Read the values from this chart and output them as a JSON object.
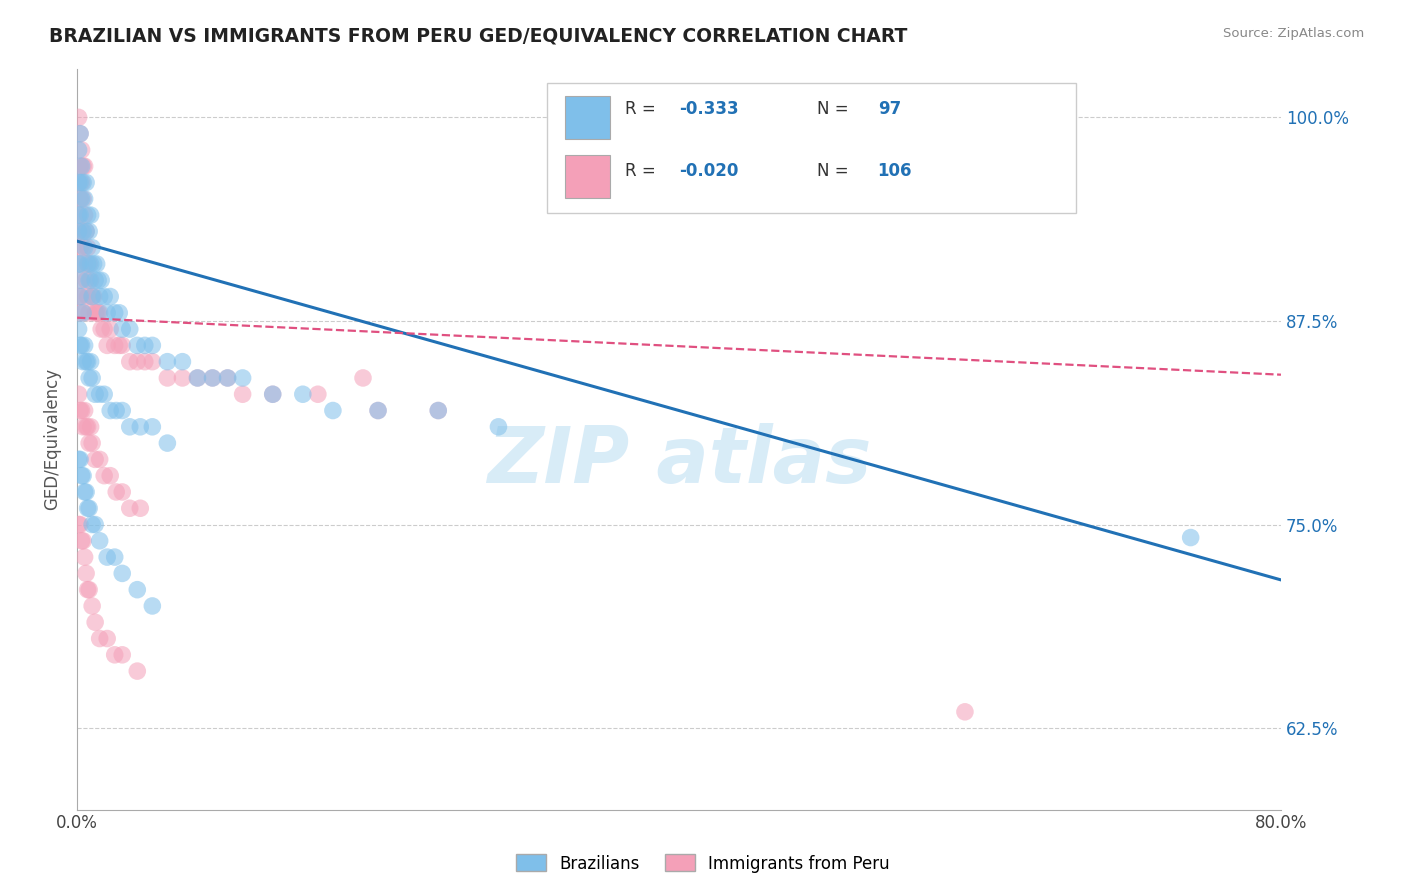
{
  "title": "BRAZILIAN VS IMMIGRANTS FROM PERU GED/EQUIVALENCY CORRELATION CHART",
  "source": "Source: ZipAtlas.com",
  "ylabel": "GED/Equivalency",
  "xlim": [
    0.0,
    0.8
  ],
  "ylim": [
    0.575,
    1.03
  ],
  "ytick_vals": [
    0.625,
    0.75,
    0.875,
    1.0
  ],
  "ytick_labels": [
    "62.5%",
    "75.0%",
    "87.5%",
    "100.0%"
  ],
  "color_blue": "#7fbfea",
  "color_pink": "#f4a0b8",
  "color_blue_line": "#2171b5",
  "color_pink_line": "#e05080",
  "blue_line_x": [
    0.0,
    0.8
  ],
  "blue_line_y": [
    0.924,
    0.716
  ],
  "pink_line_x": [
    0.0,
    0.8
  ],
  "pink_line_y": [
    0.877,
    0.842
  ],
  "blue_scatter_x": [
    0.001,
    0.001,
    0.001,
    0.001,
    0.001,
    0.002,
    0.002,
    0.002,
    0.002,
    0.002,
    0.003,
    0.003,
    0.003,
    0.004,
    0.004,
    0.004,
    0.005,
    0.005,
    0.006,
    0.006,
    0.007,
    0.007,
    0.008,
    0.008,
    0.009,
    0.009,
    0.01,
    0.01,
    0.011,
    0.012,
    0.013,
    0.014,
    0.015,
    0.016,
    0.018,
    0.02,
    0.022,
    0.025,
    0.028,
    0.03,
    0.035,
    0.04,
    0.045,
    0.05,
    0.06,
    0.07,
    0.08,
    0.09,
    0.1,
    0.11,
    0.13,
    0.15,
    0.17,
    0.2,
    0.24,
    0.28,
    0.001,
    0.002,
    0.003,
    0.004,
    0.005,
    0.006,
    0.007,
    0.008,
    0.009,
    0.01,
    0.012,
    0.015,
    0.018,
    0.022,
    0.026,
    0.03,
    0.035,
    0.042,
    0.05,
    0.06,
    0.001,
    0.002,
    0.003,
    0.004,
    0.005,
    0.006,
    0.007,
    0.008,
    0.01,
    0.012,
    0.015,
    0.02,
    0.025,
    0.03,
    0.04,
    0.05,
    0.74
  ],
  "blue_scatter_y": [
    0.96,
    0.94,
    0.98,
    0.93,
    0.91,
    0.99,
    0.96,
    0.94,
    0.91,
    0.89,
    0.97,
    0.95,
    0.9,
    0.96,
    0.93,
    0.88,
    0.95,
    0.92,
    0.96,
    0.93,
    0.94,
    0.91,
    0.93,
    0.9,
    0.94,
    0.91,
    0.92,
    0.89,
    0.91,
    0.9,
    0.91,
    0.9,
    0.89,
    0.9,
    0.89,
    0.88,
    0.89,
    0.88,
    0.88,
    0.87,
    0.87,
    0.86,
    0.86,
    0.86,
    0.85,
    0.85,
    0.84,
    0.84,
    0.84,
    0.84,
    0.83,
    0.83,
    0.82,
    0.82,
    0.82,
    0.81,
    0.87,
    0.86,
    0.86,
    0.85,
    0.86,
    0.85,
    0.85,
    0.84,
    0.85,
    0.84,
    0.83,
    0.83,
    0.83,
    0.82,
    0.82,
    0.82,
    0.81,
    0.81,
    0.81,
    0.8,
    0.79,
    0.79,
    0.78,
    0.78,
    0.77,
    0.77,
    0.76,
    0.76,
    0.75,
    0.75,
    0.74,
    0.73,
    0.73,
    0.72,
    0.71,
    0.7,
    0.742
  ],
  "pink_scatter_x": [
    0.001,
    0.001,
    0.001,
    0.001,
    0.001,
    0.002,
    0.002,
    0.002,
    0.002,
    0.002,
    0.003,
    0.003,
    0.003,
    0.004,
    0.004,
    0.004,
    0.005,
    0.005,
    0.006,
    0.006,
    0.007,
    0.007,
    0.008,
    0.008,
    0.009,
    0.01,
    0.011,
    0.012,
    0.013,
    0.014,
    0.015,
    0.016,
    0.018,
    0.02,
    0.022,
    0.025,
    0.028,
    0.03,
    0.035,
    0.04,
    0.045,
    0.05,
    0.06,
    0.07,
    0.08,
    0.09,
    0.1,
    0.11,
    0.13,
    0.16,
    0.2,
    0.24,
    0.001,
    0.002,
    0.003,
    0.004,
    0.005,
    0.006,
    0.007,
    0.008,
    0.009,
    0.01,
    0.012,
    0.015,
    0.018,
    0.022,
    0.026,
    0.03,
    0.035,
    0.042,
    0.001,
    0.002,
    0.003,
    0.004,
    0.005,
    0.006,
    0.007,
    0.008,
    0.01,
    0.012,
    0.015,
    0.02,
    0.025,
    0.03,
    0.04,
    0.001,
    0.002,
    0.003,
    0.004,
    0.005,
    0.19,
    0.59
  ],
  "pink_scatter_y": [
    0.96,
    0.94,
    0.91,
    0.93,
    0.89,
    0.97,
    0.95,
    0.92,
    0.9,
    0.88,
    0.96,
    0.93,
    0.89,
    0.95,
    0.92,
    0.88,
    0.94,
    0.91,
    0.93,
    0.9,
    0.92,
    0.89,
    0.91,
    0.88,
    0.9,
    0.89,
    0.89,
    0.88,
    0.88,
    0.88,
    0.88,
    0.87,
    0.87,
    0.86,
    0.87,
    0.86,
    0.86,
    0.86,
    0.85,
    0.85,
    0.85,
    0.85,
    0.84,
    0.84,
    0.84,
    0.84,
    0.84,
    0.83,
    0.83,
    0.83,
    0.82,
    0.82,
    0.83,
    0.82,
    0.82,
    0.81,
    0.82,
    0.81,
    0.81,
    0.8,
    0.81,
    0.8,
    0.79,
    0.79,
    0.78,
    0.78,
    0.77,
    0.77,
    0.76,
    0.76,
    0.75,
    0.75,
    0.74,
    0.74,
    0.73,
    0.72,
    0.71,
    0.71,
    0.7,
    0.69,
    0.68,
    0.68,
    0.67,
    0.67,
    0.66,
    1.0,
    0.99,
    0.98,
    0.97,
    0.97,
    0.84,
    0.635
  ]
}
